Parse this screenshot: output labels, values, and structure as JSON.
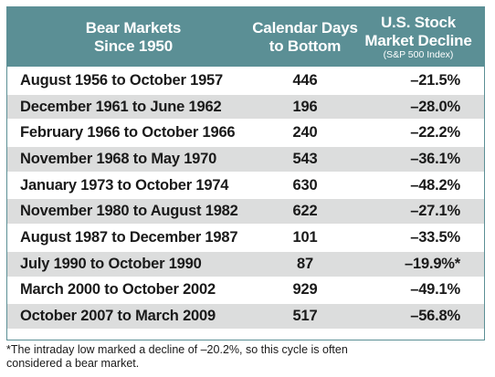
{
  "chart_data": {
    "type": "table",
    "columns": [
      {
        "key": "period",
        "label_lines": [
          "Bear Markets",
          "Since 1950"
        ]
      },
      {
        "key": "days",
        "label_lines": [
          "Calendar Days",
          "to Bottom"
        ]
      },
      {
        "key": "decline",
        "label_lines": [
          "U.S. Stock",
          "Market Decline"
        ],
        "sublabel": "(S&P 500 Index)"
      }
    ],
    "rows": [
      {
        "period": "August 1956 to October 1957",
        "days": "446",
        "decline": "–21.5%"
      },
      {
        "period": "December 1961 to June 1962",
        "days": "196",
        "decline": "–28.0%"
      },
      {
        "period": "February 1966 to October 1966",
        "days": "240",
        "decline": "–22.2%"
      },
      {
        "period": "November 1968 to May 1970",
        "days": "543",
        "decline": "–36.1%"
      },
      {
        "period": "January 1973 to October 1974",
        "days": "630",
        "decline": "–48.2%"
      },
      {
        "period": "November 1980 to August 1982",
        "days": "622",
        "decline": "–27.1%"
      },
      {
        "period": "August 1987 to December 1987",
        "days": "101",
        "decline": "–33.5%"
      },
      {
        "period": "July 1990 to October 1990",
        "days": "87",
        "decline": "–19.9%*"
      },
      {
        "period": "March 2000 to October 2002",
        "days": "929",
        "decline": "–49.1%"
      },
      {
        "period": "October 2007 to March 2009",
        "days": "517",
        "decline": "–56.8%"
      }
    ],
    "footnote_lines": [
      "*The intraday low marked a decline of –20.2%, so this cycle is often",
      "considered a bear market."
    ]
  },
  "colors": {
    "header_bg": "#5b8f95",
    "header_text": "#ffffff",
    "row_shaded": "#dcdddd",
    "row_plain": "#ffffff",
    "text": "#1a1a1a"
  }
}
